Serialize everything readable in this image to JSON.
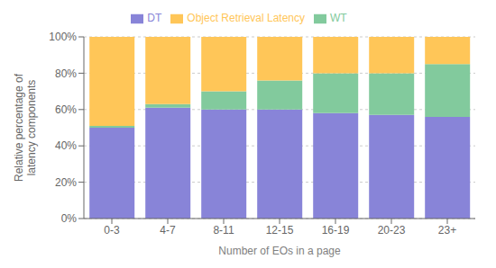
{
  "chart_data": {
    "type": "bar",
    "stacked": true,
    "categories": [
      "0-3",
      "4-7",
      "8-11",
      "12-15",
      "16-19",
      "20-23",
      "23+"
    ],
    "series": [
      {
        "name": "DT",
        "color": "#8884d8",
        "values": [
          50,
          61,
          60,
          60,
          58,
          57,
          56
        ]
      },
      {
        "name": "WT",
        "color": "#82ca9d",
        "values": [
          1,
          2,
          10,
          16,
          22,
          23,
          29
        ]
      },
      {
        "name": "Object Retrieval Latency",
        "color": "#ffc658",
        "values": [
          49,
          37,
          30,
          24,
          20,
          20,
          15
        ]
      }
    ],
    "xlabel": "Number of EOs in a page",
    "ylabel": "Relative percentage of\nlatency components",
    "ylim": [
      0,
      100
    ],
    "yticks": [
      {
        "value": 0,
        "label": "0%"
      },
      {
        "value": 20,
        "label": "20%"
      },
      {
        "value": 40,
        "label": "40%"
      },
      {
        "value": 60,
        "label": "60%"
      },
      {
        "value": 80,
        "label": "80%"
      },
      {
        "value": 100,
        "label": "100%"
      }
    ],
    "grid": true,
    "legend": "top"
  }
}
